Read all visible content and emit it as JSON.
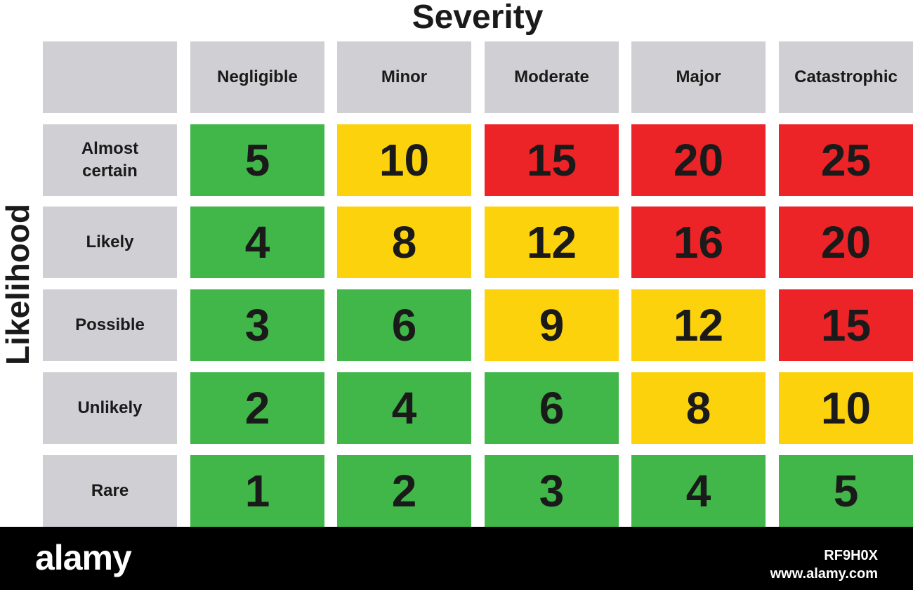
{
  "chart_data": {
    "type": "heatmap",
    "title": "Severity",
    "ylabel": "Likelihood",
    "columns": [
      "Negligible",
      "Minor",
      "Moderate",
      "Major",
      "Catastrophic"
    ],
    "rows": [
      "Almost certain",
      "Likely",
      "Possible",
      "Unlikely",
      "Rare"
    ],
    "values": [
      [
        5,
        10,
        15,
        20,
        25
      ],
      [
        4,
        8,
        12,
        16,
        20
      ],
      [
        3,
        6,
        9,
        12,
        15
      ],
      [
        2,
        4,
        6,
        8,
        10
      ],
      [
        1,
        2,
        3,
        4,
        5
      ]
    ],
    "level_colors": {
      "low": "#41b649",
      "medium": "#fcd20d",
      "high": "#ec2327"
    },
    "cell_levels": [
      [
        "low",
        "medium",
        "high",
        "high",
        "high"
      ],
      [
        "low",
        "medium",
        "medium",
        "high",
        "high"
      ],
      [
        "low",
        "low",
        "medium",
        "medium",
        "high"
      ],
      [
        "low",
        "low",
        "low",
        "medium",
        "medium"
      ],
      [
        "low",
        "low",
        "low",
        "low",
        "low"
      ]
    ],
    "header_color": "#d0d0d4"
  },
  "watermark": {
    "logo": "alamy",
    "image_id": "RF9H0X",
    "url": "www.alamy.com"
  }
}
